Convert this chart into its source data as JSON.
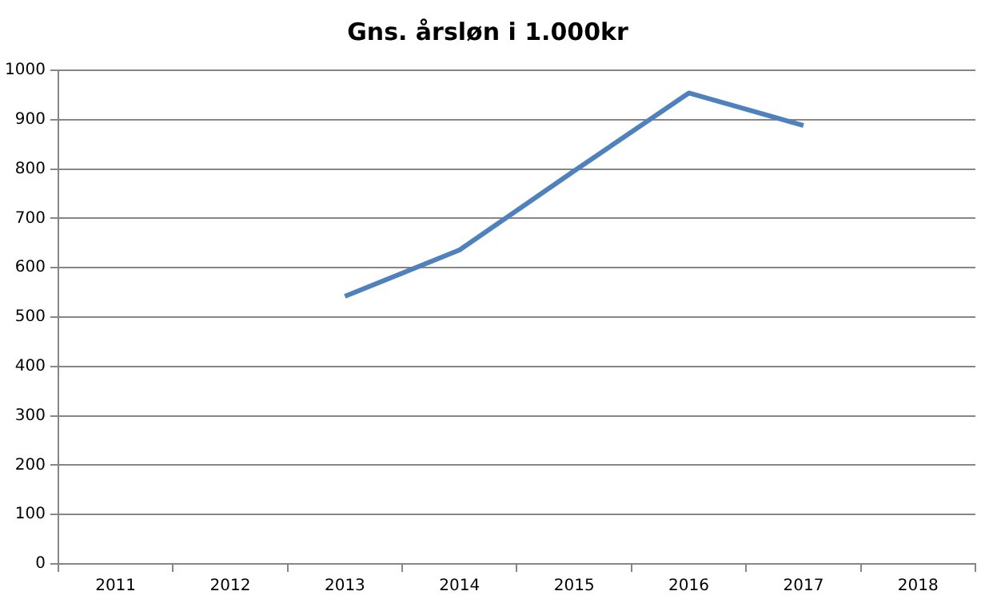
{
  "chart_data": {
    "type": "line",
    "title": "Gns. årsløn i 1.000kr",
    "categories": [
      "2011",
      "2012",
      "2013",
      "2014",
      "2015",
      "2016",
      "2017",
      "2018"
    ],
    "series": [
      {
        "color": "#4f81bd",
        "values": [
          null,
          null,
          542,
          636,
          796,
          954,
          888,
          null
        ]
      }
    ],
    "ylim": [
      0,
      1000
    ],
    "yticks": [
      0,
      100,
      200,
      300,
      400,
      500,
      600,
      700,
      800,
      900,
      1000
    ],
    "grid": "y",
    "legend": false,
    "marker": "none"
  }
}
